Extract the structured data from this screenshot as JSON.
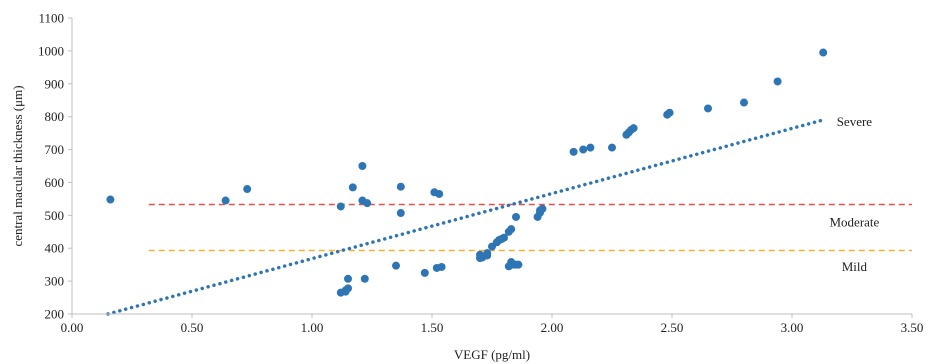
{
  "chart_data": {
    "type": "scatter",
    "title": "",
    "xlabel": "VEGF (pg/ml)",
    "ylabel": "central macular thickness (μm)",
    "xlim": [
      0.0,
      3.5
    ],
    "ylim": [
      200,
      1100
    ],
    "x_ticks": [
      "0.00",
      "0.50",
      "1.00",
      "1.50",
      "2.00",
      "2.50",
      "3.00",
      "3.50"
    ],
    "y_ticks": [
      "200",
      "300",
      "400",
      "500",
      "600",
      "700",
      "800",
      "900",
      "1000",
      "1100"
    ],
    "grid": false,
    "legend": "none",
    "colors": {
      "points": "#2e75b6",
      "trendline": "#2e75b6",
      "severe_line": "#e8504a",
      "mild_line": "#f2b233"
    },
    "series": [
      {
        "points": [
          [
            0.16,
            548
          ],
          [
            0.64,
            545
          ],
          [
            0.73,
            580
          ],
          [
            1.12,
            527
          ],
          [
            1.12,
            265
          ],
          [
            1.14,
            268
          ],
          [
            1.14,
            272
          ],
          [
            1.15,
            278
          ],
          [
            1.15,
            307
          ],
          [
            1.17,
            585
          ],
          [
            1.21,
            650
          ],
          [
            1.21,
            545
          ],
          [
            1.22,
            307
          ],
          [
            1.23,
            537
          ],
          [
            1.35,
            347
          ],
          [
            1.37,
            587
          ],
          [
            1.37,
            507
          ],
          [
            1.47,
            325
          ],
          [
            1.51,
            570
          ],
          [
            1.52,
            340
          ],
          [
            1.53,
            565
          ],
          [
            1.54,
            343
          ],
          [
            1.7,
            380
          ],
          [
            1.7,
            370
          ],
          [
            1.71,
            372
          ],
          [
            1.73,
            378
          ],
          [
            1.73,
            385
          ],
          [
            1.75,
            405
          ],
          [
            1.77,
            418
          ],
          [
            1.78,
            425
          ],
          [
            1.79,
            428
          ],
          [
            1.8,
            432
          ],
          [
            1.82,
            450
          ],
          [
            1.82,
            345
          ],
          [
            1.83,
            458
          ],
          [
            1.83,
            358
          ],
          [
            1.84,
            350
          ],
          [
            1.85,
            495
          ],
          [
            1.85,
            350
          ],
          [
            1.86,
            350
          ],
          [
            1.94,
            495
          ],
          [
            1.95,
            508
          ],
          [
            1.95,
            515
          ],
          [
            1.96,
            520
          ],
          [
            2.09,
            693
          ],
          [
            2.13,
            700
          ],
          [
            2.16,
            706
          ],
          [
            2.25,
            706
          ],
          [
            2.31,
            745
          ],
          [
            2.32,
            752
          ],
          [
            2.33,
            760
          ],
          [
            2.34,
            765
          ],
          [
            2.48,
            806
          ],
          [
            2.49,
            812
          ],
          [
            2.65,
            825
          ],
          [
            2.8,
            843
          ],
          [
            2.94,
            907
          ],
          [
            3.13,
            995
          ]
        ]
      }
    ],
    "trendline": {
      "x": [
        0.15,
        3.13
      ],
      "y": [
        200,
        790
      ]
    },
    "reference_lines": [
      {
        "label": "Severe",
        "y": 533,
        "x": [
          0.32,
          3.5
        ]
      },
      {
        "label": "Mild",
        "y": 393,
        "x": [
          0.32,
          3.5
        ]
      }
    ],
    "annotations": [
      {
        "text": "Severe",
        "x": 3.26,
        "y": 785
      },
      {
        "text": "Moderate",
        "x": 3.26,
        "y": 479
      },
      {
        "text": "Mild",
        "x": 3.26,
        "y": 345
      }
    ]
  }
}
